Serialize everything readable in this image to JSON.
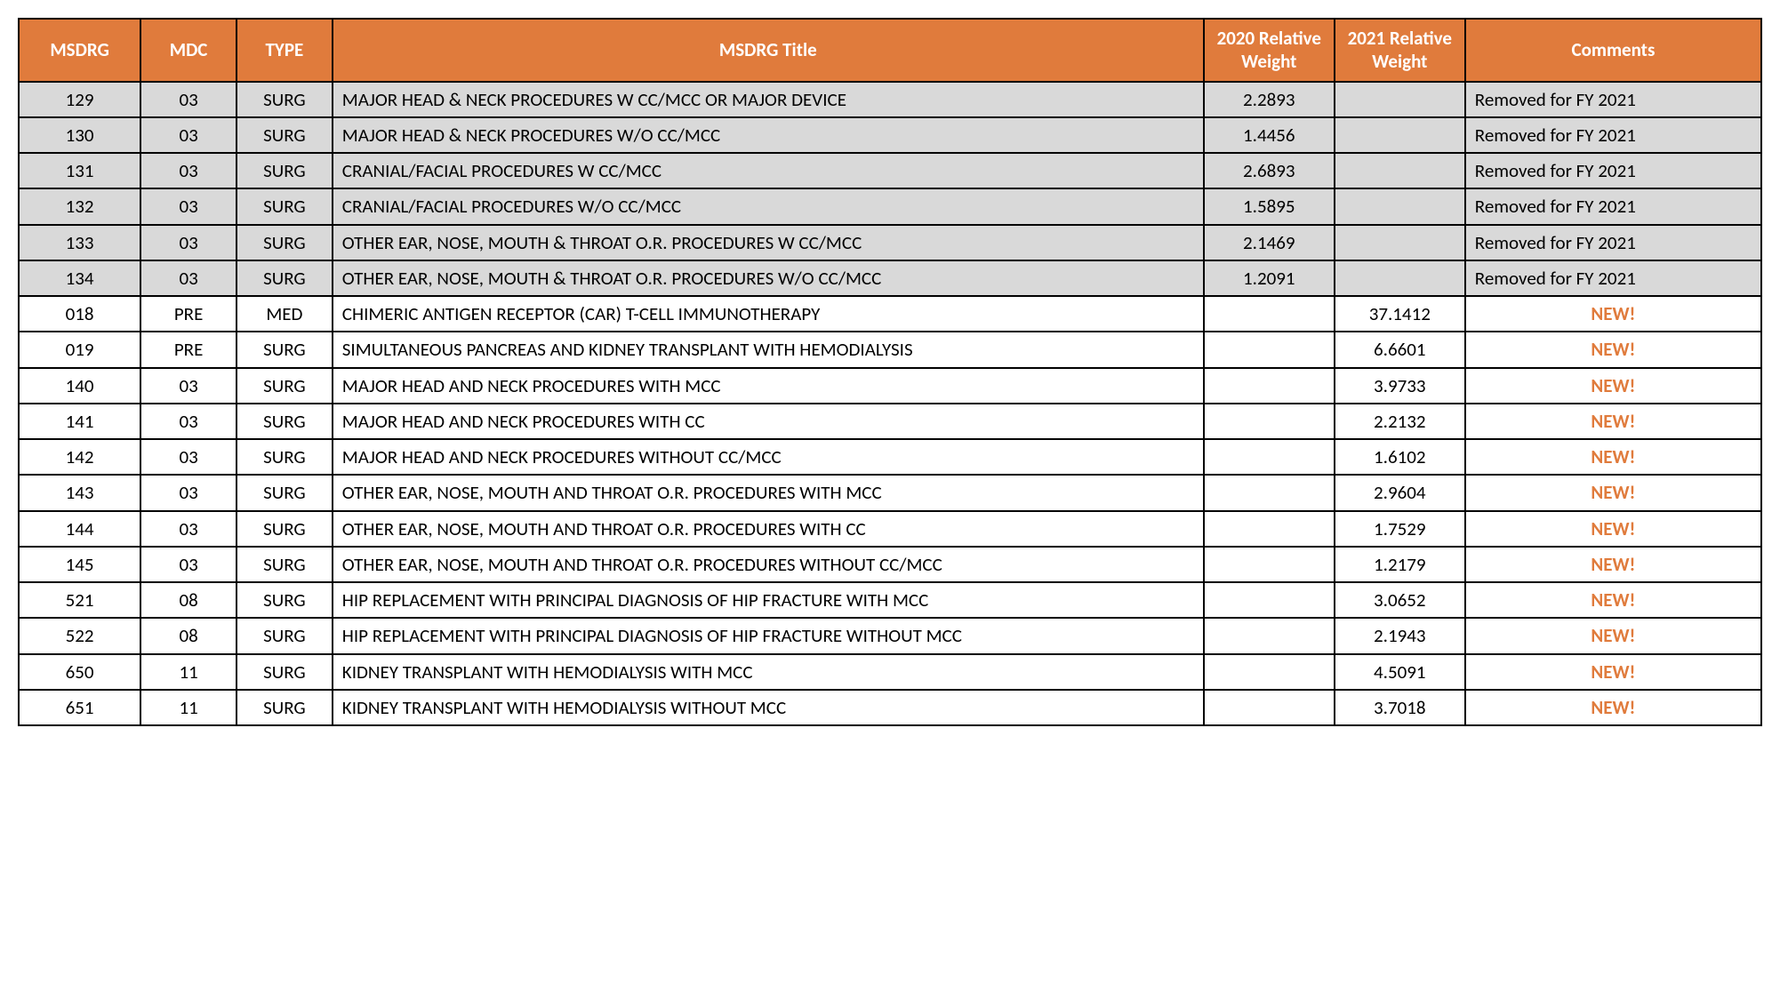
{
  "table": {
    "header_bg": "#e07b3c",
    "header_fg": "#ffffff",
    "removed_bg": "#d9d9d9",
    "new_bg": "#ffffff",
    "new_comment_color": "#e07b3c",
    "columns": [
      {
        "key": "msdrg",
        "label": "MSDRG"
      },
      {
        "key": "mdc",
        "label": "MDC"
      },
      {
        "key": "type",
        "label": "TYPE"
      },
      {
        "key": "title",
        "label": "MSDRG Title"
      },
      {
        "key": "w2020",
        "label": "2020 Relative Weight"
      },
      {
        "key": "w2021",
        "label": "2021 Relative Weight"
      },
      {
        "key": "comm",
        "label": "Comments"
      }
    ],
    "rows": [
      {
        "status": "removed",
        "msdrg": "129",
        "mdc": "03",
        "type": "SURG",
        "title": "MAJOR HEAD & NECK PROCEDURES W CC/MCC OR MAJOR DEVICE",
        "w2020": "2.2893",
        "w2021": "",
        "comm": "Removed for FY 2021"
      },
      {
        "status": "removed",
        "msdrg": "130",
        "mdc": "03",
        "type": "SURG",
        "title": "MAJOR HEAD & NECK PROCEDURES W/O CC/MCC",
        "w2020": "1.4456",
        "w2021": "",
        "comm": "Removed for FY 2021"
      },
      {
        "status": "removed",
        "msdrg": "131",
        "mdc": "03",
        "type": "SURG",
        "title": "CRANIAL/FACIAL PROCEDURES W CC/MCC",
        "w2020": "2.6893",
        "w2021": "",
        "comm": "Removed for FY 2021"
      },
      {
        "status": "removed",
        "msdrg": "132",
        "mdc": "03",
        "type": "SURG",
        "title": "CRANIAL/FACIAL PROCEDURES W/O CC/MCC",
        "w2020": "1.5895",
        "w2021": "",
        "comm": "Removed for FY 2021"
      },
      {
        "status": "removed",
        "msdrg": "133",
        "mdc": "03",
        "type": "SURG",
        "title": "OTHER EAR, NOSE, MOUTH & THROAT O.R. PROCEDURES W CC/MCC",
        "w2020": "2.1469",
        "w2021": "",
        "comm": "Removed for FY 2021"
      },
      {
        "status": "removed",
        "msdrg": "134",
        "mdc": "03",
        "type": "SURG",
        "title": "OTHER EAR, NOSE, MOUTH & THROAT O.R. PROCEDURES W/O CC/MCC",
        "w2020": "1.2091",
        "w2021": "",
        "comm": "Removed for FY 2021"
      },
      {
        "status": "new",
        "msdrg": "018",
        "mdc": "PRE",
        "type": "MED",
        "title": "CHIMERIC ANTIGEN RECEPTOR (CAR) T-CELL IMMUNOTHERAPY",
        "w2020": "",
        "w2021": "37.1412",
        "comm": "NEW!"
      },
      {
        "status": "new",
        "msdrg": "019",
        "mdc": "PRE",
        "type": "SURG",
        "title": "SIMULTANEOUS PANCREAS AND KIDNEY TRANSPLANT WITH HEMODIALYSIS",
        "w2020": "",
        "w2021": "6.6601",
        "comm": "NEW!"
      },
      {
        "status": "new",
        "msdrg": "140",
        "mdc": "03",
        "type": "SURG",
        "title": "MAJOR HEAD AND NECK PROCEDURES WITH MCC",
        "w2020": "",
        "w2021": "3.9733",
        "comm": "NEW!"
      },
      {
        "status": "new",
        "msdrg": "141",
        "mdc": "03",
        "type": "SURG",
        "title": "MAJOR HEAD AND NECK PROCEDURES WITH CC",
        "w2020": "",
        "w2021": "2.2132",
        "comm": "NEW!"
      },
      {
        "status": "new",
        "msdrg": "142",
        "mdc": "03",
        "type": "SURG",
        "title": "MAJOR HEAD AND NECK PROCEDURES WITHOUT CC/MCC",
        "w2020": "",
        "w2021": "1.6102",
        "comm": "NEW!"
      },
      {
        "status": "new",
        "msdrg": "143",
        "mdc": "03",
        "type": "SURG",
        "title": "OTHER EAR, NOSE, MOUTH AND THROAT O.R. PROCEDURES WITH MCC",
        "w2020": "",
        "w2021": "2.9604",
        "comm": "NEW!"
      },
      {
        "status": "new",
        "msdrg": "144",
        "mdc": "03",
        "type": "SURG",
        "title": "OTHER EAR, NOSE, MOUTH AND THROAT O.R. PROCEDURES WITH CC",
        "w2020": "",
        "w2021": "1.7529",
        "comm": "NEW!"
      },
      {
        "status": "new",
        "msdrg": "145",
        "mdc": "03",
        "type": "SURG",
        "title": "OTHER EAR, NOSE, MOUTH AND THROAT O.R. PROCEDURES WITHOUT CC/MCC",
        "w2020": "",
        "w2021": "1.2179",
        "comm": "NEW!"
      },
      {
        "status": "new",
        "msdrg": "521",
        "mdc": "08",
        "type": "SURG",
        "title": "HIP REPLACEMENT WITH PRINCIPAL DIAGNOSIS OF HIP FRACTURE WITH MCC",
        "w2020": "",
        "w2021": "3.0652",
        "comm": "NEW!"
      },
      {
        "status": "new",
        "msdrg": "522",
        "mdc": "08",
        "type": "SURG",
        "title": "HIP REPLACEMENT WITH PRINCIPAL DIAGNOSIS OF HIP FRACTURE WITHOUT MCC",
        "w2020": "",
        "w2021": "2.1943",
        "comm": "NEW!"
      },
      {
        "status": "new",
        "msdrg": "650",
        "mdc": "11",
        "type": "SURG",
        "title": "KIDNEY TRANSPLANT WITH HEMODIALYSIS WITH MCC",
        "w2020": "",
        "w2021": "4.5091",
        "comm": "NEW!"
      },
      {
        "status": "new",
        "msdrg": "651",
        "mdc": "11",
        "type": "SURG",
        "title": "KIDNEY TRANSPLANT WITH HEMODIALYSIS WITHOUT MCC",
        "w2020": "",
        "w2021": "3.7018",
        "comm": "NEW!"
      }
    ]
  }
}
